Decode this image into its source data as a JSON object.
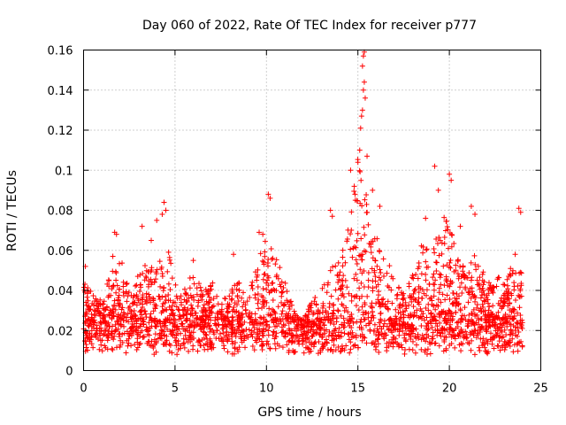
{
  "chart_data": {
    "type": "scatter",
    "title": "Day 060 of 2022, Rate Of TEC Index for receiver p777",
    "xlabel": "GPS time / hours",
    "ylabel": "ROTI / TECUs",
    "xlim": [
      0,
      25
    ],
    "ylim": [
      0,
      0.16
    ],
    "xticks": [
      0,
      5,
      10,
      15,
      20,
      25
    ],
    "yticks": [
      0,
      0.02,
      0.04,
      0.06,
      0.08,
      0.1,
      0.12,
      0.14,
      0.16
    ],
    "xtick_labels": [
      "0",
      "5",
      "10",
      "15",
      "20",
      "25"
    ],
    "ytick_labels": [
      "0",
      "0.02",
      "0.04",
      "0.06",
      "0.08",
      "0.1",
      "0.12",
      "0.14",
      "0.16"
    ],
    "grid": true,
    "marker": "plus",
    "color": "#ff0000",
    "envelope": {
      "description": "approximate upper extent of dense point cloud per hour",
      "x": [
        0,
        0.5,
        1,
        1.5,
        2,
        2.5,
        3,
        3.5,
        4,
        4.5,
        5,
        5.5,
        6,
        6.5,
        7,
        7.5,
        8,
        8.5,
        9,
        9.5,
        10,
        10.5,
        11,
        11.5,
        12,
        12.5,
        13,
        13.5,
        14,
        14.5,
        15,
        15.5,
        16,
        16.5,
        17,
        17.5,
        18,
        18.5,
        19,
        19.5,
        20,
        20.5,
        21,
        21.5,
        22,
        22.5,
        23,
        23.5,
        24
      ],
      "upper": [
        0.045,
        0.04,
        0.035,
        0.05,
        0.06,
        0.04,
        0.05,
        0.055,
        0.05,
        0.065,
        0.045,
        0.04,
        0.05,
        0.04,
        0.045,
        0.035,
        0.04,
        0.045,
        0.04,
        0.055,
        0.07,
        0.06,
        0.045,
        0.03,
        0.025,
        0.035,
        0.04,
        0.05,
        0.06,
        0.075,
        0.11,
        0.09,
        0.07,
        0.06,
        0.045,
        0.04,
        0.05,
        0.065,
        0.06,
        0.08,
        0.075,
        0.055,
        0.05,
        0.06,
        0.045,
        0.05,
        0.045,
        0.055,
        0.05
      ],
      "lower": 0.004
    },
    "outliers": [
      {
        "x": 0.1,
        "y": 0.052
      },
      {
        "x": 1.6,
        "y": 0.057
      },
      {
        "x": 1.7,
        "y": 0.069
      },
      {
        "x": 1.8,
        "y": 0.068
      },
      {
        "x": 3.2,
        "y": 0.072
      },
      {
        "x": 3.7,
        "y": 0.065
      },
      {
        "x": 4.0,
        "y": 0.075
      },
      {
        "x": 4.4,
        "y": 0.084
      },
      {
        "x": 4.5,
        "y": 0.08
      },
      {
        "x": 4.3,
        "y": 0.078
      },
      {
        "x": 6.0,
        "y": 0.055
      },
      {
        "x": 8.2,
        "y": 0.058
      },
      {
        "x": 9.6,
        "y": 0.069
      },
      {
        "x": 9.8,
        "y": 0.068
      },
      {
        "x": 10.1,
        "y": 0.088
      },
      {
        "x": 10.2,
        "y": 0.086
      },
      {
        "x": 13.5,
        "y": 0.08
      },
      {
        "x": 13.6,
        "y": 0.077
      },
      {
        "x": 14.6,
        "y": 0.1
      },
      {
        "x": 14.8,
        "y": 0.092
      },
      {
        "x": 15.0,
        "y": 0.104
      },
      {
        "x": 15.1,
        "y": 0.11
      },
      {
        "x": 15.15,
        "y": 0.121
      },
      {
        "x": 15.2,
        "y": 0.127
      },
      {
        "x": 15.25,
        "y": 0.13
      },
      {
        "x": 15.3,
        "y": 0.14
      },
      {
        "x": 15.35,
        "y": 0.144
      },
      {
        "x": 15.25,
        "y": 0.152
      },
      {
        "x": 15.3,
        "y": 0.157
      },
      {
        "x": 15.35,
        "y": 0.159
      },
      {
        "x": 15.4,
        "y": 0.136
      },
      {
        "x": 15.5,
        "y": 0.107
      },
      {
        "x": 15.8,
        "y": 0.09
      },
      {
        "x": 16.2,
        "y": 0.082
      },
      {
        "x": 18.7,
        "y": 0.076
      },
      {
        "x": 19.2,
        "y": 0.102
      },
      {
        "x": 19.4,
        "y": 0.09
      },
      {
        "x": 20.0,
        "y": 0.098
      },
      {
        "x": 20.1,
        "y": 0.095
      },
      {
        "x": 20.6,
        "y": 0.072
      },
      {
        "x": 21.2,
        "y": 0.082
      },
      {
        "x": 21.4,
        "y": 0.078
      },
      {
        "x": 23.6,
        "y": 0.058
      },
      {
        "x": 23.8,
        "y": 0.081
      },
      {
        "x": 23.9,
        "y": 0.079
      }
    ]
  }
}
